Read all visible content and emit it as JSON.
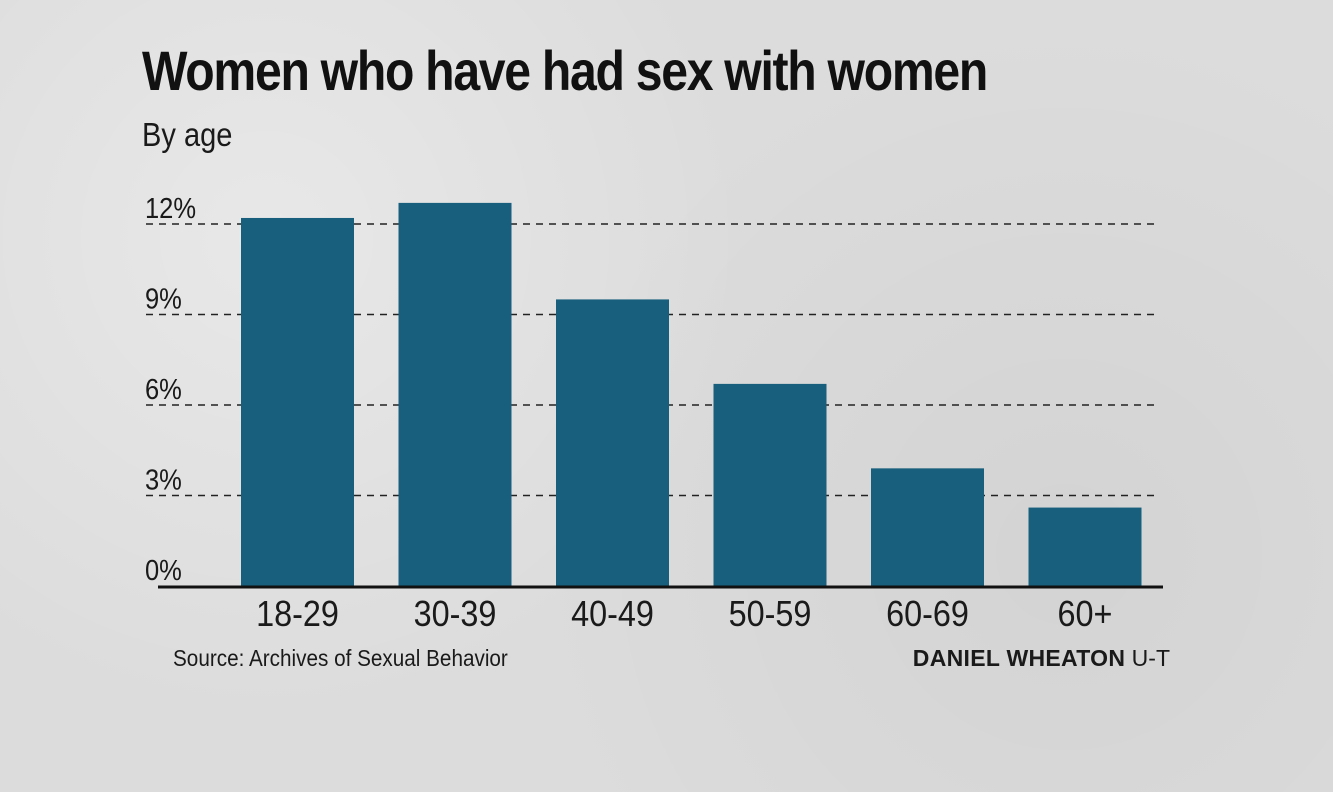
{
  "header": {
    "title": "Women who have had sex with women",
    "subtitle": "By age"
  },
  "footer": {
    "source": "Source: Archives of Sexual Behavior",
    "credit_name": "DANIEL WHEATON",
    "credit_org": "U-T"
  },
  "colors": {
    "bar": "#175f7c",
    "gridline": "#222222",
    "axis": "#111111"
  },
  "chart_data": {
    "type": "bar",
    "title": "Women who have had sex with women",
    "subtitle": "By age",
    "xlabel": "",
    "ylabel": "",
    "categories": [
      "18-29",
      "30-39",
      "40-49",
      "50-59",
      "60-69",
      "60+"
    ],
    "values": [
      12.2,
      12.7,
      9.5,
      6.7,
      3.9,
      2.6
    ],
    "ylim": [
      0,
      12
    ],
    "yticks": [
      0,
      3,
      6,
      9,
      12
    ],
    "ytick_labels": [
      "0%",
      "3%",
      "6%",
      "9%",
      "12%"
    ],
    "grid": true,
    "grid_style": "dashed"
  }
}
